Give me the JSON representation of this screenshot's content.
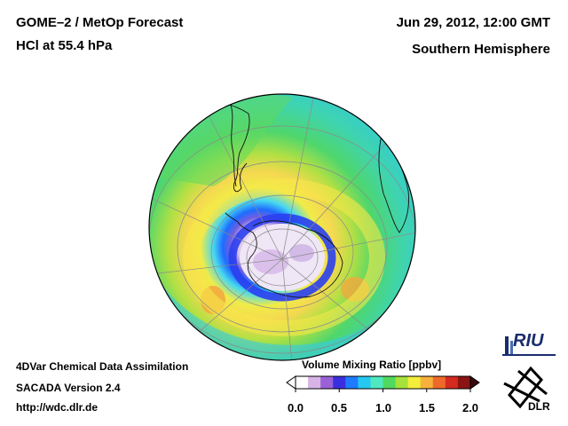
{
  "header": {
    "title": "GOME–2 / MetOp Forecast",
    "quantity": "HCl at 55.4 hPa",
    "datetime": "Jun 29, 2012, 12:00 GMT",
    "region": "Southern Hemisphere"
  },
  "footer": {
    "method": "4DVar Chemical Data Assimilation",
    "version": "SACADA Version 2.4",
    "url": "http://wdc.dlr.de"
  },
  "colorbar": {
    "title": "Volume Mixing Ratio [ppbv]",
    "ticks": [
      "0.0",
      "0.5",
      "1.0",
      "1.5",
      "2.0"
    ],
    "range": [
      0.0,
      2.0
    ],
    "colors": [
      "#ffffff",
      "#d8b4e6",
      "#9a62d6",
      "#3a2fe0",
      "#1e7bff",
      "#24c8f0",
      "#4fe8c0",
      "#4fd95f",
      "#a6e23a",
      "#f2ee3a",
      "#f7b13a",
      "#ef6a2a",
      "#d42a20",
      "#8a1414"
    ]
  },
  "logos": {
    "riu": "RIU",
    "dlr": "DLR"
  }
}
